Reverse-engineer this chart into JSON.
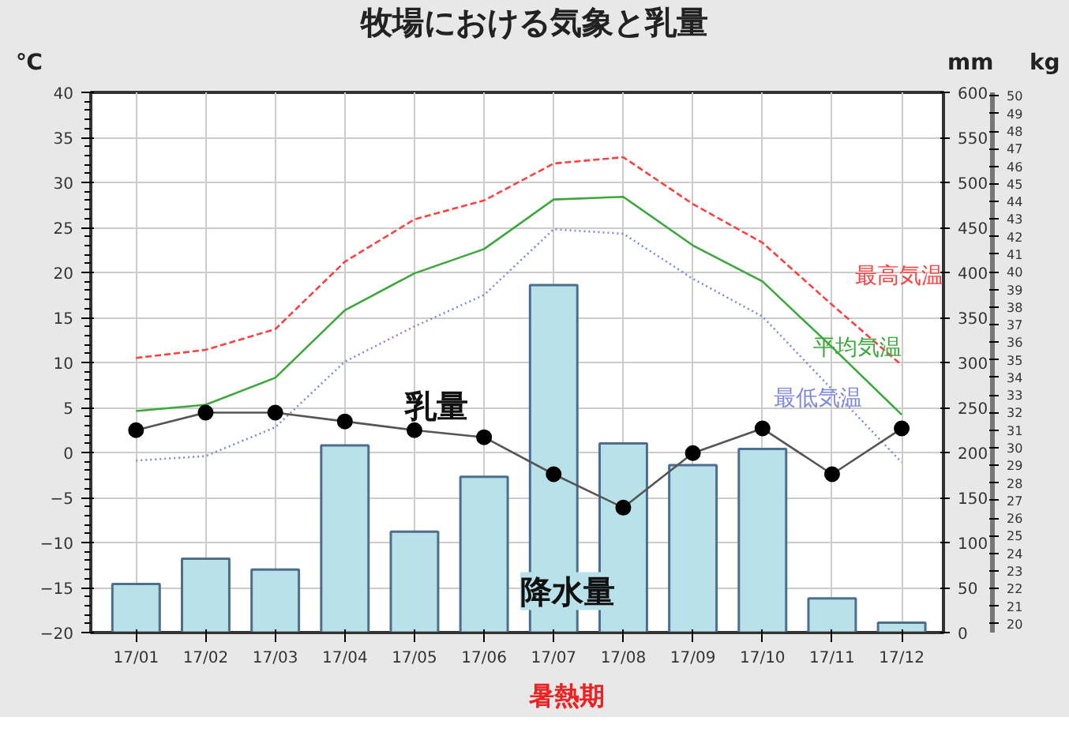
{
  "chart_data": {
    "type": "line",
    "title": "牧場における気象と乳量",
    "categories": [
      "17/01",
      "17/02",
      "17/03",
      "17/04",
      "17/05",
      "17/06",
      "17/07",
      "17/08",
      "17/09",
      "17/10",
      "17/11",
      "17/12"
    ],
    "series": [
      {
        "name": "降水量",
        "type": "bar",
        "axis": "y2",
        "color": "#b9e1ea",
        "values": [
          54,
          82,
          70,
          208,
          112,
          173,
          386,
          210,
          186,
          204,
          38,
          11
        ]
      },
      {
        "name": "最高気温",
        "line_style": "dashed",
        "marker": "none",
        "color": "#ff4040",
        "values": [
          10.5,
          11.4,
          13.7,
          21.2,
          25.9,
          28.0,
          32.1,
          32.8,
          27.6,
          23.3,
          16.4,
          9.7
        ]
      },
      {
        "name": "平均気温",
        "line_style": "solid",
        "marker": "none",
        "color": "#3aa83a",
        "values": [
          4.6,
          5.3,
          8.3,
          15.8,
          19.9,
          22.6,
          28.1,
          28.4,
          23.0,
          19.0,
          11.7,
          4.2
        ]
      },
      {
        "name": "最低気温",
        "line_style": "dotted",
        "marker": "none",
        "color": "#7f88dc",
        "values": [
          -0.9,
          -0.4,
          2.8,
          10.1,
          14.0,
          17.5,
          24.8,
          24.3,
          19.3,
          15.1,
          7.0,
          -1.1
        ]
      },
      {
        "name": "乳量",
        "axis": "y3",
        "line_style": "solid",
        "marker": "circle",
        "color": "#555555",
        "values": [
          31.0,
          32.0,
          32.0,
          31.5,
          31.0,
          30.6,
          28.5,
          26.6,
          29.7,
          31.1,
          28.5,
          31.1
        ]
      }
    ],
    "ylabel": "℃",
    "y2label": "mm",
    "y3label": "kg",
    "ylim": [
      -20,
      40
    ],
    "yticks": [
      -20,
      -15,
      -10,
      -5,
      0,
      5,
      10,
      15,
      20,
      25,
      30,
      35,
      40
    ],
    "y2lim": [
      0,
      600
    ],
    "y2ticks": [
      0,
      50,
      100,
      150,
      200,
      250,
      300,
      350,
      400,
      450,
      500,
      550,
      600
    ],
    "y3lim": [
      19.5,
      50.2
    ],
    "y3ticks": [
      20,
      21,
      22,
      23,
      24,
      25,
      26,
      27,
      28,
      29,
      30,
      31,
      32,
      33,
      34,
      35,
      36,
      37,
      38,
      39,
      40,
      41,
      42,
      43,
      44,
      45,
      46,
      47,
      48,
      49,
      50
    ],
    "grid": true,
    "annotations": [
      "暑熱期"
    ]
  }
}
